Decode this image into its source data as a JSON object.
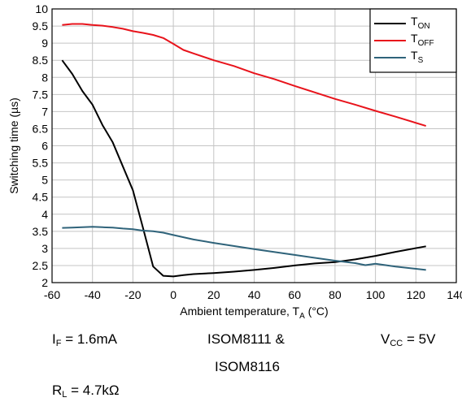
{
  "chart_data": {
    "type": "line",
    "xlabel": "Ambient temperature, T",
    "xlabel_sub": "A",
    "xlabel_unit": " (°C)",
    "ylabel": "Switching time (µs)",
    "xlim": [
      -60,
      140
    ],
    "ylim": [
      2,
      10
    ],
    "xticks": [
      -60,
      -40,
      -20,
      0,
      20,
      40,
      60,
      80,
      100,
      120,
      140
    ],
    "yticks": [
      2,
      2.5,
      3,
      3.5,
      4,
      4.5,
      5,
      5.5,
      6,
      6.5,
      7,
      7.5,
      8,
      8.5,
      9,
      9.5,
      10
    ],
    "grid": true,
    "legend_position": "top-right",
    "series": [
      {
        "name": "T",
        "name_sub": "ON",
        "color": "#000000",
        "x": [
          -55,
          -50,
          -45,
          -40,
          -35,
          -30,
          -25,
          -20,
          -15,
          -10,
          -5,
          0,
          5,
          10,
          20,
          30,
          40,
          50,
          60,
          70,
          80,
          90,
          100,
          110,
          125
        ],
        "y": [
          8.5,
          8.1,
          7.6,
          7.2,
          6.6,
          6.1,
          5.4,
          4.7,
          3.6,
          2.47,
          2.2,
          2.18,
          2.22,
          2.25,
          2.28,
          2.32,
          2.37,
          2.43,
          2.5,
          2.56,
          2.6,
          2.68,
          2.78,
          2.9,
          3.06
        ]
      },
      {
        "name": "T",
        "name_sub": "OFF",
        "color": "#e8131b",
        "x": [
          -55,
          -50,
          -45,
          -40,
          -35,
          -30,
          -25,
          -20,
          -15,
          -10,
          -5,
          0,
          5,
          10,
          20,
          30,
          40,
          50,
          60,
          70,
          80,
          90,
          100,
          110,
          125
        ],
        "y": [
          9.53,
          9.56,
          9.56,
          9.53,
          9.51,
          9.47,
          9.42,
          9.35,
          9.3,
          9.24,
          9.15,
          8.98,
          8.8,
          8.7,
          8.5,
          8.33,
          8.12,
          7.95,
          7.75,
          7.56,
          7.37,
          7.2,
          7.02,
          6.85,
          6.58
        ]
      },
      {
        "name": "T",
        "name_sub": "S",
        "color": "#2f637a",
        "x": [
          -55,
          -50,
          -45,
          -40,
          -35,
          -30,
          -25,
          -20,
          -15,
          -10,
          -5,
          0,
          10,
          20,
          40,
          60,
          80,
          90,
          95,
          100,
          110,
          125
        ],
        "y": [
          3.6,
          3.61,
          3.62,
          3.63,
          3.62,
          3.61,
          3.58,
          3.56,
          3.52,
          3.5,
          3.46,
          3.39,
          3.26,
          3.16,
          2.98,
          2.81,
          2.64,
          2.57,
          2.51,
          2.55,
          2.47,
          2.37
        ]
      }
    ]
  },
  "conditions": {
    "if_label": "I",
    "if_sub": "F",
    "if_value": " = 1.6mA",
    "devices_line1": "ISOM8111 &",
    "devices_line2": "ISOM8116",
    "vcc_label": "V",
    "vcc_sub": "CC",
    "vcc_value": " = 5V",
    "rl_label": "R",
    "rl_sub": "L",
    "rl_value": " = 4.7kΩ"
  }
}
